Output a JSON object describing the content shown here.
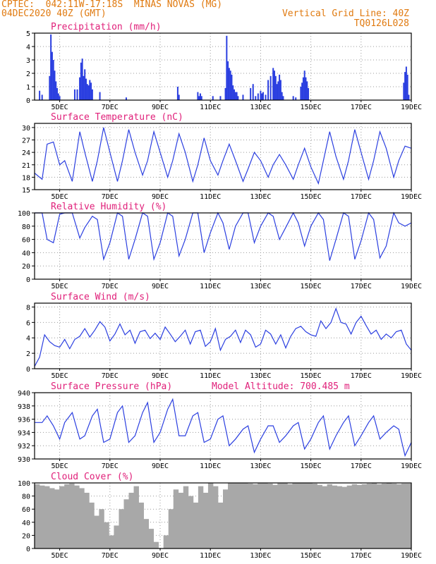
{
  "header": {
    "left_line1": "CPTEC:  042:11W-17:18S  MINAS NOVAS (MG)",
    "left_line2": "04DEC2020 40Z (GMT)",
    "right_line1": "Vertical Grid Line: 40Z",
    "right_line2": "TQ0126L028"
  },
  "colors": {
    "header": "#e07a10",
    "title": "#e0207a",
    "line": "#2b3fe0",
    "cloud": "#a8a8a8",
    "grid": "#999999"
  },
  "x_ticks": [
    "5DEC",
    "7DEC",
    "9DEC",
    "11DEC",
    "13DEC",
    "15DEC",
    "17DEC",
    "19DEC"
  ],
  "x_days": [
    5,
    7,
    9,
    11,
    13,
    15,
    17,
    19
  ],
  "x_range_days": [
    4.0,
    19.0
  ],
  "chart_data": [
    {
      "type": "bar",
      "title": "Precipitation (mm/h)",
      "ylim": [
        0,
        5
      ],
      "yticks": [
        0,
        1,
        2,
        3,
        4,
        5
      ],
      "x": [
        4.2,
        4.3,
        4.6,
        4.65,
        4.7,
        4.75,
        4.8,
        4.85,
        4.9,
        4.95,
        5.0,
        5.6,
        5.7,
        5.8,
        5.85,
        5.9,
        5.95,
        6.0,
        6.05,
        6.1,
        6.15,
        6.2,
        6.25,
        6.3,
        6.6,
        7.65,
        9.7,
        9.75,
        10.5,
        10.55,
        10.6,
        10.65,
        11.1,
        11.4,
        11.6,
        11.65,
        11.7,
        11.75,
        11.8,
        11.85,
        11.9,
        11.95,
        12.0,
        12.05,
        12.1,
        12.3,
        12.6,
        12.7,
        12.8,
        12.9,
        13.0,
        13.05,
        13.1,
        13.2,
        13.3,
        13.4,
        13.5,
        13.55,
        13.6,
        13.65,
        13.7,
        13.75,
        13.8,
        13.85,
        13.9,
        14.3,
        14.4,
        14.6,
        14.65,
        14.7,
        14.75,
        14.8,
        14.85,
        14.9,
        18.7,
        18.75,
        18.8,
        18.85,
        18.9
      ],
      "values": [
        0.7,
        0.4,
        1.8,
        4.9,
        3.6,
        3.0,
        2.2,
        1.4,
        0.9,
        0.5,
        0.3,
        0.8,
        0.8,
        1.7,
        2.8,
        3.1,
        1.8,
        2.3,
        1.6,
        1.2,
        1.1,
        1.5,
        1.3,
        0.8,
        0.6,
        0.2,
        1.0,
        0.4,
        0.6,
        0.3,
        0.5,
        0.3,
        0.3,
        0.3,
        0.9,
        4.8,
        2.9,
        2.4,
        2.2,
        1.9,
        1.1,
        0.8,
        0.6,
        0.6,
        0.3,
        0.4,
        0.9,
        1.2,
        0.3,
        0.5,
        0.7,
        0.5,
        0.6,
        0.4,
        1.5,
        1.8,
        2.4,
        2.2,
        1.8,
        1.2,
        1.4,
        1.9,
        1.5,
        0.6,
        0.3,
        0.3,
        0.2,
        1.0,
        1.3,
        1.7,
        2.2,
        1.7,
        1.4,
        0.9,
        1.3,
        2.1,
        2.5,
        1.9,
        0.4
      ]
    },
    {
      "type": "line",
      "title": "Surface Temperature (nC)",
      "ylim": [
        15,
        31
      ],
      "yticks": [
        15,
        18,
        21,
        24,
        27,
        30
      ],
      "x": [
        4.0,
        4.3,
        4.5,
        4.75,
        5.0,
        5.2,
        5.5,
        5.8,
        6.0,
        6.3,
        6.5,
        6.75,
        7.0,
        7.3,
        7.5,
        7.75,
        8.0,
        8.3,
        8.5,
        8.75,
        9.0,
        9.3,
        9.5,
        9.75,
        10.0,
        10.3,
        10.5,
        10.75,
        11.0,
        11.3,
        11.5,
        11.75,
        12.0,
        12.3,
        12.5,
        12.75,
        13.0,
        13.3,
        13.5,
        13.75,
        14.0,
        14.3,
        14.5,
        14.75,
        15.0,
        15.3,
        15.5,
        15.75,
        16.0,
        16.3,
        16.5,
        16.75,
        17.0,
        17.3,
        17.5,
        17.75,
        18.0,
        18.3,
        18.5,
        18.75,
        19.0
      ],
      "values": [
        19.0,
        17.5,
        26.0,
        26.5,
        21.0,
        22.0,
        17.0,
        29.0,
        24.0,
        17.0,
        22.0,
        30.0,
        24.0,
        17.0,
        22.0,
        29.5,
        24.0,
        18.5,
        22.0,
        29.0,
        24.0,
        18.0,
        22.0,
        28.5,
        24.0,
        17.0,
        21.0,
        27.5,
        22.0,
        18.5,
        22.0,
        26.0,
        22.0,
        17.0,
        20.0,
        24.0,
        22.0,
        18.0,
        21.0,
        23.5,
        21.0,
        17.5,
        21.0,
        25.0,
        20.5,
        16.5,
        22.0,
        29.0,
        23.0,
        17.5,
        22.0,
        29.5,
        24.0,
        17.5,
        22.0,
        29.0,
        25.0,
        18.0,
        22.0,
        25.5,
        25.0
      ]
    },
    {
      "type": "line",
      "title": "Relative Humidity (%)",
      "ylim": [
        0,
        100
      ],
      "yticks": [
        0,
        20,
        40,
        60,
        80,
        100
      ],
      "x": [
        4.0,
        4.3,
        4.5,
        4.75,
        5.0,
        5.2,
        5.5,
        5.8,
        6.0,
        6.3,
        6.5,
        6.75,
        7.0,
        7.3,
        7.5,
        7.75,
        8.0,
        8.3,
        8.5,
        8.75,
        9.0,
        9.3,
        9.5,
        9.75,
        10.0,
        10.3,
        10.5,
        10.75,
        11.0,
        11.3,
        11.5,
        11.75,
        12.0,
        12.3,
        12.5,
        12.75,
        13.0,
        13.3,
        13.5,
        13.75,
        14.0,
        14.3,
        14.5,
        14.75,
        15.0,
        15.3,
        15.5,
        15.75,
        16.0,
        16.3,
        16.5,
        16.75,
        17.0,
        17.3,
        17.5,
        17.75,
        18.0,
        18.3,
        18.5,
        18.75,
        19.0
      ],
      "values": [
        100,
        100,
        60,
        55,
        98,
        100,
        100,
        62,
        78,
        95,
        90,
        30,
        55,
        100,
        95,
        30,
        60,
        100,
        95,
        30,
        55,
        100,
        95,
        35,
        60,
        100,
        100,
        40,
        70,
        100,
        85,
        45,
        80,
        100,
        100,
        55,
        80,
        100,
        95,
        60,
        78,
        100,
        85,
        50,
        80,
        100,
        90,
        28,
        60,
        100,
        95,
        30,
        58,
        100,
        90,
        32,
        50,
        100,
        85,
        80,
        85
      ]
    },
    {
      "type": "line",
      "title": "Surface Wind (m/s)",
      "ylim": [
        0,
        8.5
      ],
      "yticks": [
        0,
        2,
        4,
        6,
        8
      ],
      "x": [
        4.0,
        4.2,
        4.4,
        4.6,
        4.8,
        5.0,
        5.2,
        5.4,
        5.6,
        5.8,
        6.0,
        6.2,
        6.4,
        6.6,
        6.8,
        7.0,
        7.2,
        7.4,
        7.6,
        7.8,
        8.0,
        8.2,
        8.4,
        8.6,
        8.8,
        9.0,
        9.2,
        9.4,
        9.6,
        9.8,
        10.0,
        10.2,
        10.4,
        10.6,
        10.8,
        11.0,
        11.2,
        11.4,
        11.6,
        11.8,
        12.0,
        12.2,
        12.4,
        12.6,
        12.8,
        13.0,
        13.2,
        13.4,
        13.6,
        13.8,
        14.0,
        14.2,
        14.4,
        14.6,
        14.8,
        15.0,
        15.2,
        15.4,
        15.6,
        15.8,
        16.0,
        16.2,
        16.4,
        16.6,
        16.8,
        17.0,
        17.2,
        17.4,
        17.6,
        17.8,
        18.0,
        18.2,
        18.4,
        18.6,
        18.8,
        19.0
      ],
      "values": [
        0.3,
        1.5,
        4.4,
        3.5,
        3.0,
        2.8,
        3.8,
        2.6,
        3.8,
        4.2,
        5.2,
        4.1,
        5.0,
        6.1,
        5.4,
        3.6,
        4.5,
        5.8,
        4.4,
        5.0,
        3.3,
        4.8,
        5.0,
        3.9,
        4.6,
        3.8,
        5.4,
        4.5,
        3.5,
        4.2,
        5.0,
        3.2,
        4.8,
        5.0,
        2.9,
        3.5,
        5.2,
        2.4,
        3.8,
        4.2,
        5.0,
        3.4,
        5.0,
        4.4,
        2.8,
        3.2,
        5.0,
        4.5,
        3.2,
        4.4,
        2.7,
        4.2,
        5.2,
        5.5,
        4.8,
        4.4,
        4.2,
        6.2,
        5.2,
        6.0,
        7.8,
        6.0,
        5.8,
        4.5,
        6.0,
        6.8,
        5.6,
        4.5,
        5.0,
        3.8,
        4.5,
        4.0,
        4.8,
        5.0,
        3.2,
        2.4
      ]
    },
    {
      "type": "line",
      "title": "Surface Pressure (hPa)",
      "annotation": "Model Altitude: 700.485 m",
      "ylim": [
        930,
        940
      ],
      "yticks": [
        930,
        932,
        934,
        936,
        938,
        940
      ],
      "x": [
        4.0,
        4.3,
        4.5,
        4.75,
        5.0,
        5.2,
        5.5,
        5.8,
        6.0,
        6.3,
        6.5,
        6.75,
        7.0,
        7.3,
        7.5,
        7.75,
        8.0,
        8.3,
        8.5,
        8.75,
        9.0,
        9.3,
        9.5,
        9.75,
        10.0,
        10.3,
        10.5,
        10.75,
        11.0,
        11.3,
        11.5,
        11.75,
        12.0,
        12.3,
        12.5,
        12.75,
        13.0,
        13.3,
        13.5,
        13.75,
        14.0,
        14.3,
        14.5,
        14.75,
        15.0,
        15.3,
        15.5,
        15.75,
        16.0,
        16.3,
        16.5,
        16.75,
        17.0,
        17.3,
        17.5,
        17.75,
        18.0,
        18.3,
        18.5,
        18.75,
        19.0
      ],
      "values": [
        935.5,
        935.5,
        936.5,
        935.0,
        933.0,
        935.5,
        937.0,
        933.0,
        933.5,
        936.5,
        937.5,
        932.5,
        933.0,
        937.0,
        938.0,
        932.5,
        933.5,
        937.0,
        938.5,
        932.5,
        934.0,
        937.5,
        939.0,
        933.5,
        933.5,
        936.5,
        937.0,
        932.5,
        933.0,
        936.0,
        936.5,
        932.0,
        933.0,
        934.5,
        935.0,
        931.0,
        933.0,
        935.0,
        935.0,
        932.5,
        933.5,
        935.0,
        935.5,
        931.5,
        933.0,
        935.5,
        936.5,
        931.5,
        933.5,
        935.5,
        936.5,
        932.0,
        933.5,
        935.5,
        936.5,
        933.0,
        934.0,
        935.0,
        934.5,
        930.5,
        932.5
      ]
    },
    {
      "type": "bar",
      "title": "Cloud Cover (%)",
      "ylim": [
        0,
        100
      ],
      "yticks": [
        0,
        20,
        40,
        60,
        80,
        100
      ],
      "x": [
        4.0,
        4.2,
        4.4,
        4.6,
        4.8,
        5.0,
        5.2,
        5.4,
        5.6,
        5.8,
        6.0,
        6.2,
        6.4,
        6.6,
        6.8,
        7.0,
        7.2,
        7.4,
        7.6,
        7.8,
        8.0,
        8.2,
        8.4,
        8.6,
        8.8,
        9.0,
        9.2,
        9.4,
        9.6,
        9.8,
        10.0,
        10.2,
        10.4,
        10.6,
        10.8,
        11.0,
        11.2,
        11.4,
        11.6,
        11.8,
        12.0,
        12.2,
        12.4,
        12.6,
        12.8,
        13.0,
        13.2,
        13.4,
        13.6,
        13.8,
        14.0,
        14.2,
        14.4,
        14.6,
        14.8,
        15.0,
        15.2,
        15.4,
        15.6,
        15.8,
        16.0,
        16.2,
        16.4,
        16.6,
        16.8,
        17.0,
        17.2,
        17.4,
        17.6,
        17.8,
        18.0,
        18.2,
        18.4,
        18.6,
        18.8,
        19.0
      ],
      "values": [
        98,
        96,
        95,
        92,
        90,
        95,
        98,
        99,
        96,
        92,
        85,
        70,
        50,
        60,
        40,
        20,
        35,
        60,
        75,
        85,
        95,
        70,
        45,
        30,
        10,
        0,
        20,
        60,
        90,
        85,
        95,
        80,
        70,
        95,
        85,
        100,
        95,
        70,
        90,
        100,
        100,
        100,
        100,
        99,
        98,
        100,
        100,
        99,
        97,
        100,
        100,
        98,
        100,
        100,
        100,
        100,
        99,
        97,
        95,
        98,
        96,
        95,
        94,
        96,
        98,
        97,
        98,
        99,
        100,
        98,
        99,
        100,
        99,
        98,
        99,
        99
      ]
    }
  ]
}
